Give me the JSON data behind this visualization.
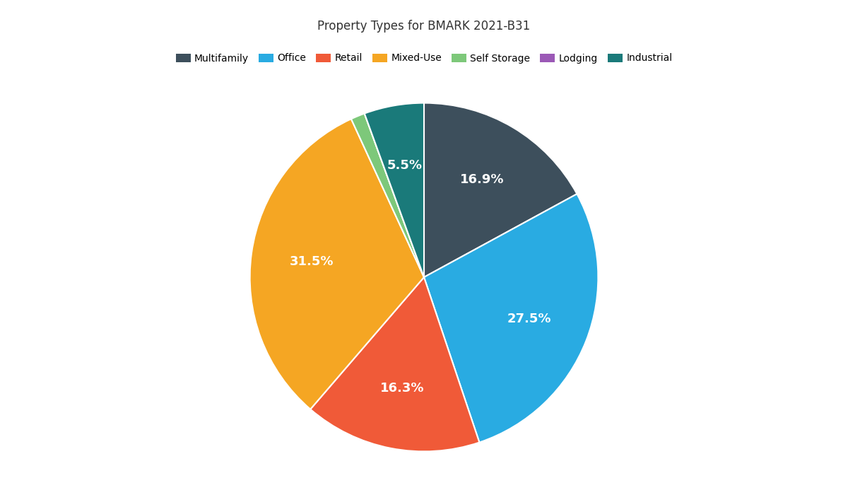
{
  "title": "Property Types for BMARK 2021-B31",
  "categories": [
    "Multifamily",
    "Office",
    "Retail",
    "Mixed-Use",
    "Self Storage",
    "Lodging",
    "Industrial"
  ],
  "values": [
    16.9,
    27.5,
    16.3,
    31.5,
    1.3,
    0.0,
    5.5
  ],
  "colors": [
    "#3d4f5c",
    "#29abe2",
    "#f05a38",
    "#f5a623",
    "#7dc87a",
    "#9b59b6",
    "#1a7a7a"
  ],
  "labels": [
    "16.9%",
    "27.5%",
    "16.3%",
    "31.5%",
    "",
    "",
    "5.5%"
  ],
  "startangle": 90,
  "background_color": "#ffffff",
  "title_fontsize": 12,
  "legend_fontsize": 10
}
